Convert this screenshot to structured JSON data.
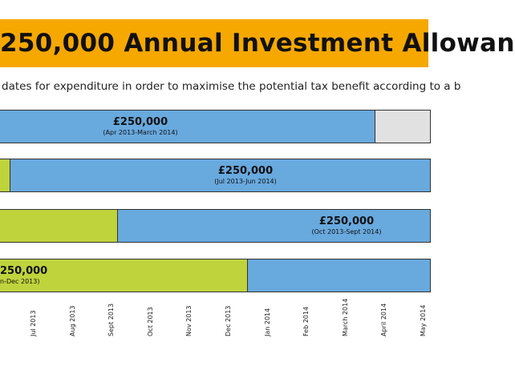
{
  "header": {
    "title": "250,000 Annual Investment Allowan",
    "subtitle": "dates for expenditure in order to maximise the potential tax benefit according to a b"
  },
  "rows": [
    {
      "amount": "£250,000",
      "period": "(Apr 2013-March 2014)"
    },
    {
      "amount": "£250,000",
      "period": "(Jul 2013-Jun 2014)"
    },
    {
      "amount": "£250,000",
      "period": "(Oct 2013-Sept 2014)"
    },
    {
      "amount": "250,000",
      "period": "n-Dec 2013)"
    }
  ],
  "months": [
    "Jul 2013",
    "Aug 2013",
    "Sept 2013",
    "Oct 2013",
    "Nov 2013",
    "Dec 2013",
    "Jan 2014",
    "Feb 2014",
    "March 2014",
    "April 2014",
    "May 2014"
  ]
}
